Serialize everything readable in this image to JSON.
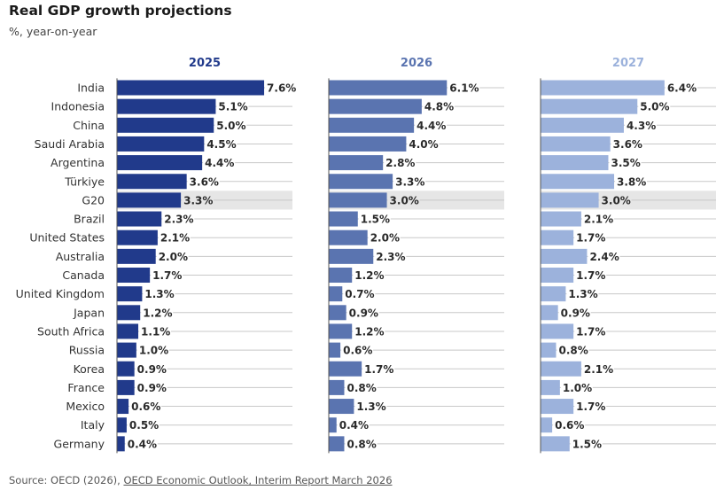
{
  "chart_data": {
    "type": "bar",
    "orientation": "horizontal",
    "title": "Real GDP growth projections",
    "subtitle": "%, year-on-year",
    "categories": [
      "India",
      "Indonesia",
      "China",
      "Saudi Arabia",
      "Argentina",
      "Türkiye",
      "G20",
      "Brazil",
      "United States",
      "Australia",
      "Canada",
      "United Kingdom",
      "Japan",
      "South Africa",
      "Russia",
      "Korea",
      "France",
      "Mexico",
      "Italy",
      "Germany"
    ],
    "highlight_category": "G20",
    "value_suffix": "%",
    "xlim": [
      0,
      9
    ],
    "grid": true,
    "series": [
      {
        "name": "2025",
        "color": "#213a8b",
        "values": [
          7.6,
          5.1,
          5.0,
          4.5,
          4.4,
          3.6,
          3.3,
          2.3,
          2.1,
          2.0,
          1.7,
          1.3,
          1.2,
          1.1,
          1.0,
          0.9,
          0.9,
          0.6,
          0.5,
          0.4
        ]
      },
      {
        "name": "2026",
        "color": "#5a74b0",
        "values": [
          6.1,
          4.8,
          4.4,
          4.0,
          2.8,
          3.3,
          3.0,
          1.5,
          2.0,
          2.3,
          1.2,
          0.7,
          0.9,
          1.2,
          0.6,
          1.7,
          0.8,
          1.3,
          0.4,
          0.8
        ]
      },
      {
        "name": "2027",
        "color": "#9cb2dc",
        "values": [
          6.4,
          5.0,
          4.3,
          3.6,
          3.5,
          3.8,
          3.0,
          2.1,
          1.7,
          2.4,
          1.7,
          1.3,
          0.9,
          1.7,
          0.8,
          2.1,
          1.0,
          1.7,
          0.6,
          1.5
        ]
      }
    ],
    "highlight_color": "#e6e6e6"
  },
  "source": {
    "prefix": "Source: OECD (2026), ",
    "link": "OECD Economic Outlook, Interim Report March 2026"
  }
}
